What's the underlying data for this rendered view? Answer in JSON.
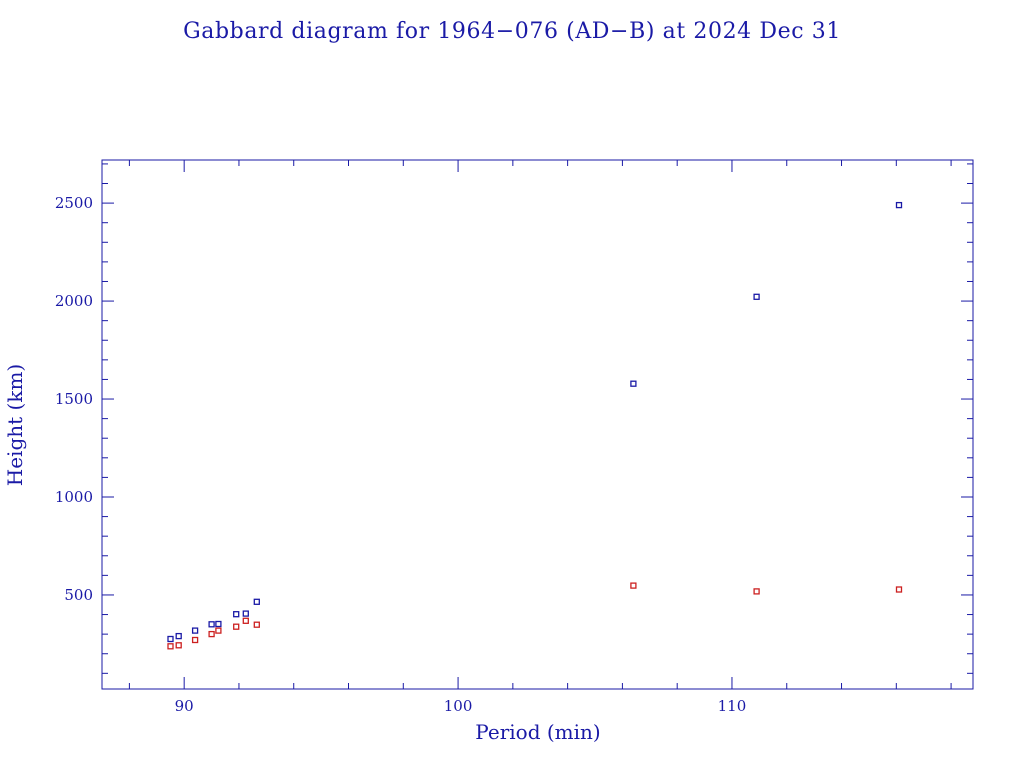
{
  "chart_data": {
    "type": "scatter",
    "title": "Gabbard diagram for 1964−076 (AD−B) at 2024 Dec 31",
    "xlabel": "Period (min)",
    "ylabel": "Height (km)",
    "xlim": [
      87,
      118.8
    ],
    "ylim": [
      20,
      2720
    ],
    "x_ticks": [
      90,
      100,
      110
    ],
    "y_ticks": [
      500,
      1000,
      1500,
      2000,
      2500
    ],
    "x_tick_labels": [
      "90",
      "100",
      "110"
    ],
    "y_tick_labels": [
      "500",
      "1000",
      "1500",
      "2000",
      "2500"
    ],
    "grid": false,
    "colors": {
      "axis": "#1a1aa6",
      "apogee": "#1a1aa6",
      "perigee": "#cc2020"
    },
    "series": [
      {
        "key": "apogee",
        "points": [
          [
            89.5,
            275
          ],
          [
            89.8,
            290
          ],
          [
            90.4,
            318
          ],
          [
            91.0,
            350
          ],
          [
            91.25,
            352
          ],
          [
            91.9,
            402
          ],
          [
            92.25,
            405
          ],
          [
            92.65,
            465
          ],
          [
            106.4,
            1578
          ],
          [
            110.9,
            2022
          ],
          [
            116.1,
            2490
          ]
        ]
      },
      {
        "key": "perigee",
        "points": [
          [
            89.5,
            238
          ],
          [
            89.8,
            243
          ],
          [
            90.4,
            270
          ],
          [
            91.0,
            300
          ],
          [
            91.25,
            318
          ],
          [
            91.9,
            338
          ],
          [
            92.25,
            368
          ],
          [
            92.65,
            348
          ],
          [
            106.4,
            548
          ],
          [
            110.9,
            518
          ],
          [
            116.1,
            528
          ]
        ]
      }
    ]
  }
}
